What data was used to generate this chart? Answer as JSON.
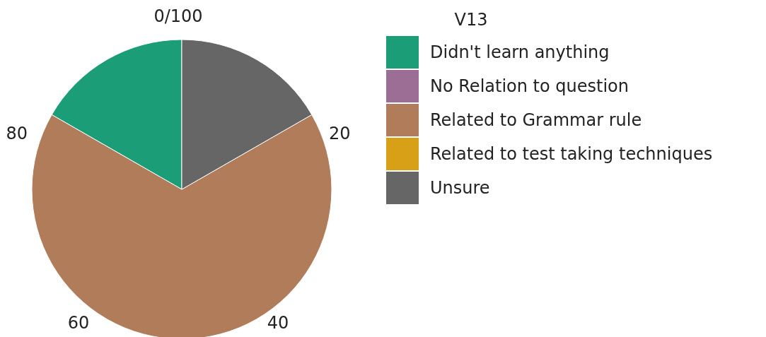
{
  "chart_data": {
    "type": "pie",
    "legend_title": "V13",
    "legend": "right",
    "categories": [
      "Didn't learn anything",
      "No Relation to question",
      "Related to Grammar rule",
      "Related to test taking techniques",
      "Unsure"
    ],
    "values": [
      16.7,
      0,
      66.6,
      0,
      16.7
    ],
    "colors": [
      "#1b9e77",
      "#9c6e96",
      "#b07c5a",
      "#d8a016",
      "#666666"
    ],
    "annotations": [
      "0/100",
      "20",
      "40",
      "60",
      "80"
    ]
  }
}
